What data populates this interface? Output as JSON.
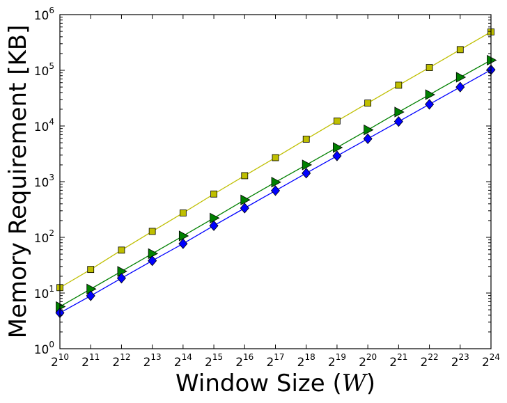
{
  "chart_data": {
    "type": "line",
    "title": "",
    "xlabel": "Window Size (",
    "xlabel_var": "W",
    "xlabel_close": ")",
    "ylabel": "Memory Requirement [KB]",
    "x_scale": "log2",
    "y_scale": "log10",
    "x": [
      1024,
      2048,
      4096,
      8192,
      16384,
      32768,
      65536,
      131072,
      262144,
      524288,
      1048576,
      2097152,
      4194304,
      8388608,
      16777216
    ],
    "xlim": [
      1024,
      16777216
    ],
    "ylim": [
      1,
      1000000
    ],
    "x_ticks": [
      {
        "value": 1024,
        "base": "2",
        "exp": "10"
      },
      {
        "value": 2048,
        "base": "2",
        "exp": "11"
      },
      {
        "value": 4096,
        "base": "2",
        "exp": "12"
      },
      {
        "value": 8192,
        "base": "2",
        "exp": "13"
      },
      {
        "value": 16384,
        "base": "2",
        "exp": "14"
      },
      {
        "value": 32768,
        "base": "2",
        "exp": "15"
      },
      {
        "value": 65536,
        "base": "2",
        "exp": "16"
      },
      {
        "value": 131072,
        "base": "2",
        "exp": "17"
      },
      {
        "value": 262144,
        "base": "2",
        "exp": "18"
      },
      {
        "value": 524288,
        "base": "2",
        "exp": "19"
      },
      {
        "value": 1048576,
        "base": "2",
        "exp": "20"
      },
      {
        "value": 2097152,
        "base": "2",
        "exp": "21"
      },
      {
        "value": 4194304,
        "base": "2",
        "exp": "22"
      },
      {
        "value": 8388608,
        "base": "2",
        "exp": "23"
      },
      {
        "value": 16777216,
        "base": "2",
        "exp": "24"
      }
    ],
    "y_ticks": [
      {
        "value": 1,
        "base": "10",
        "exp": "0"
      },
      {
        "value": 10,
        "base": "10",
        "exp": "1"
      },
      {
        "value": 100,
        "base": "10",
        "exp": "2"
      },
      {
        "value": 1000,
        "base": "10",
        "exp": "3"
      },
      {
        "value": 10000,
        "base": "10",
        "exp": "4"
      },
      {
        "value": 100000,
        "base": "10",
        "exp": "5"
      },
      {
        "value": 1000000,
        "base": "10",
        "exp": "6"
      }
    ],
    "grid": false,
    "legend": "none",
    "series": [
      {
        "marker": "square",
        "color": "#bfbf00",
        "values": [
          12.5,
          26.5,
          59,
          128,
          274,
          600,
          1280,
          2700,
          5800,
          12300,
          25800,
          54000,
          112000,
          235000,
          490000
        ]
      },
      {
        "marker": "triangle-right",
        "color": "#008000",
        "values": [
          5.7,
          11.8,
          24.5,
          51,
          106,
          222,
          470,
          980,
          2000,
          4100,
          8500,
          17800,
          36500,
          75000,
          152000
        ]
      },
      {
        "marker": "diamond",
        "color": "#0000ff",
        "values": [
          4.4,
          8.9,
          18.5,
          38,
          77,
          162,
          335,
          690,
          1420,
          2900,
          5900,
          12000,
          24500,
          50000,
          102000
        ]
      }
    ]
  }
}
